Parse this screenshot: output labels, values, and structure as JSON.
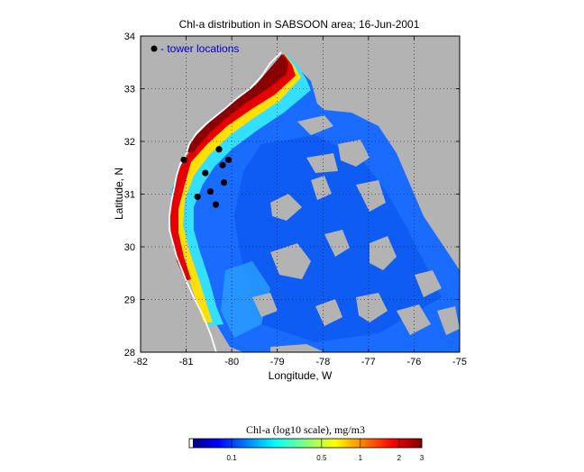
{
  "figure": {
    "title": "Chl-a distribution in SABSOON area; 16-Jun-2001",
    "xlabel": "Longitude, W",
    "ylabel": "Latitude, N",
    "legend_label": "- tower locations",
    "colorbar_label": "Chl-a (log10 scale), mg/m3"
  },
  "colors": {
    "land": "#b3b3b3",
    "coastline": "#ffffff",
    "legend_text": "#0000cc",
    "marker": "#000000"
  },
  "map": {
    "lon_range": [
      -82,
      -75
    ],
    "lat_range": [
      28,
      34
    ],
    "x_ticks": [
      -82,
      -81,
      -80,
      -79,
      -78,
      -77,
      -76,
      -75
    ],
    "y_ticks": [
      28,
      29,
      30,
      31,
      32,
      33,
      34
    ],
    "grid": true
  },
  "towers": [
    {
      "lon": -81.05,
      "lat": 31.65
    },
    {
      "lon": -80.28,
      "lat": 31.85
    },
    {
      "lon": -80.07,
      "lat": 31.65
    },
    {
      "lon": -80.2,
      "lat": 31.55
    },
    {
      "lon": -80.58,
      "lat": 31.4
    },
    {
      "lon": -80.17,
      "lat": 31.22
    },
    {
      "lon": -80.47,
      "lat": 31.05
    },
    {
      "lon": -80.75,
      "lat": 30.95
    },
    {
      "lon": -80.35,
      "lat": 30.8
    }
  ],
  "colorbar": {
    "tick_labels": [
      "0.1",
      "0.5",
      "1",
      "2",
      "3"
    ],
    "tick_values": [
      0.1,
      0.5,
      1,
      2,
      3
    ],
    "range": [
      0.05,
      3
    ]
  }
}
